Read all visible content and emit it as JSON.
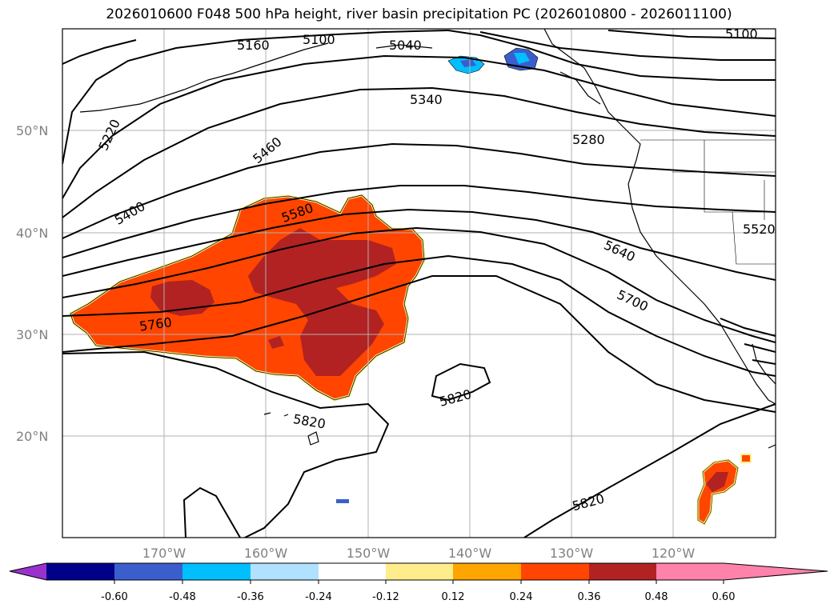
{
  "title": "2026010600 F048 500 hPa height, river basin precipitation PC (2026010800 - 2026011100)",
  "map": {
    "lat_labels": [
      "50°N",
      "40°N",
      "30°N",
      "20°N"
    ],
    "lon_labels": [
      "170°W",
      "160°W",
      "150°W",
      "140°W",
      "130°W",
      "120°W"
    ],
    "contour_labels": [
      "5160",
      "5100",
      "5040",
      "5100",
      "5220",
      "5340",
      "5280",
      "5460",
      "5400",
      "5580",
      "5520",
      "5640",
      "5760",
      "5700",
      "5820",
      "5820",
      "5820"
    ],
    "fill_colors": {
      "dark_red": "#b22222",
      "orange_red": "#ff4500",
      "yellow": "#fff08c",
      "blue": "#3a5fcd",
      "light_blue": "#00bfff"
    }
  },
  "colorbar": {
    "tick_labels": [
      "-0.60",
      "-0.48",
      "-0.36",
      "-0.24",
      "-0.12",
      "0.12",
      "0.24",
      "0.36",
      "0.48",
      "0.60"
    ],
    "colors": [
      "#9932cc",
      "#00008b",
      "#3a5fcd",
      "#00bfff",
      "#b0e2ff",
      "#ffffff",
      "#ffec8b",
      "#ffa500",
      "#ff4500",
      "#b22222",
      "#ff82ab"
    ]
  }
}
